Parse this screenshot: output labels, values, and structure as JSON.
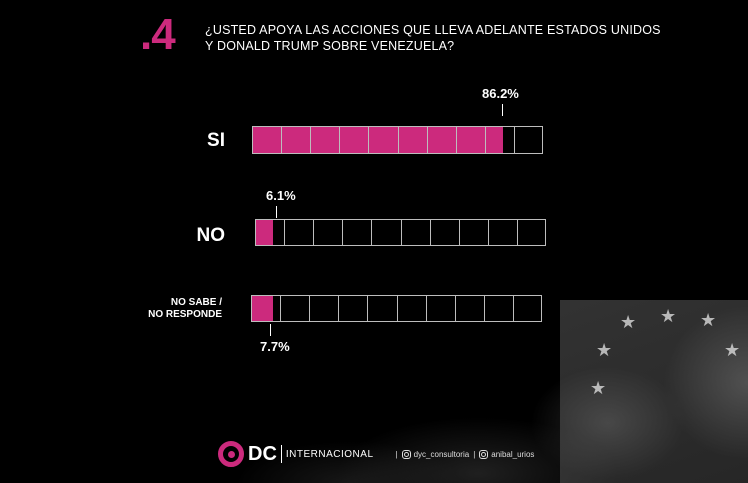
{
  "question": {
    "number": ".4",
    "text_line1": "¿USTED APOYA LAS ACCIONES QUE LLEVA ADELANTE ESTADOS UNIDOS",
    "text_line2": "Y DONALD TRUMP SOBRE VENEZUELA?"
  },
  "chart_data": {
    "type": "bar",
    "orientation": "horizontal",
    "categories": [
      "SI",
      "NO",
      "NO SABE / NO RESPONDE"
    ],
    "values": [
      86.2,
      6.1,
      7.7
    ],
    "value_labels": [
      "86.2%",
      "6.1%",
      "7.7%"
    ],
    "unit": "%",
    "xlim": [
      0,
      100
    ],
    "cells_per_bar": 10,
    "fill_color": "#cc2a7d",
    "grid_color": "#bdbdbd"
  },
  "labels": {
    "si": "SI",
    "no": "NO",
    "ns_line1": "NO SABE /",
    "ns_line2": "NO RESPONDE"
  },
  "footer": {
    "logo_text": "DC",
    "logo_sub": "INTERNACIONAL",
    "social_1": "dyc_consultoria",
    "social_2": "anibal_urios",
    "separator": "|"
  },
  "colors": {
    "accent": "#cc2a7d",
    "background": "#000000"
  }
}
